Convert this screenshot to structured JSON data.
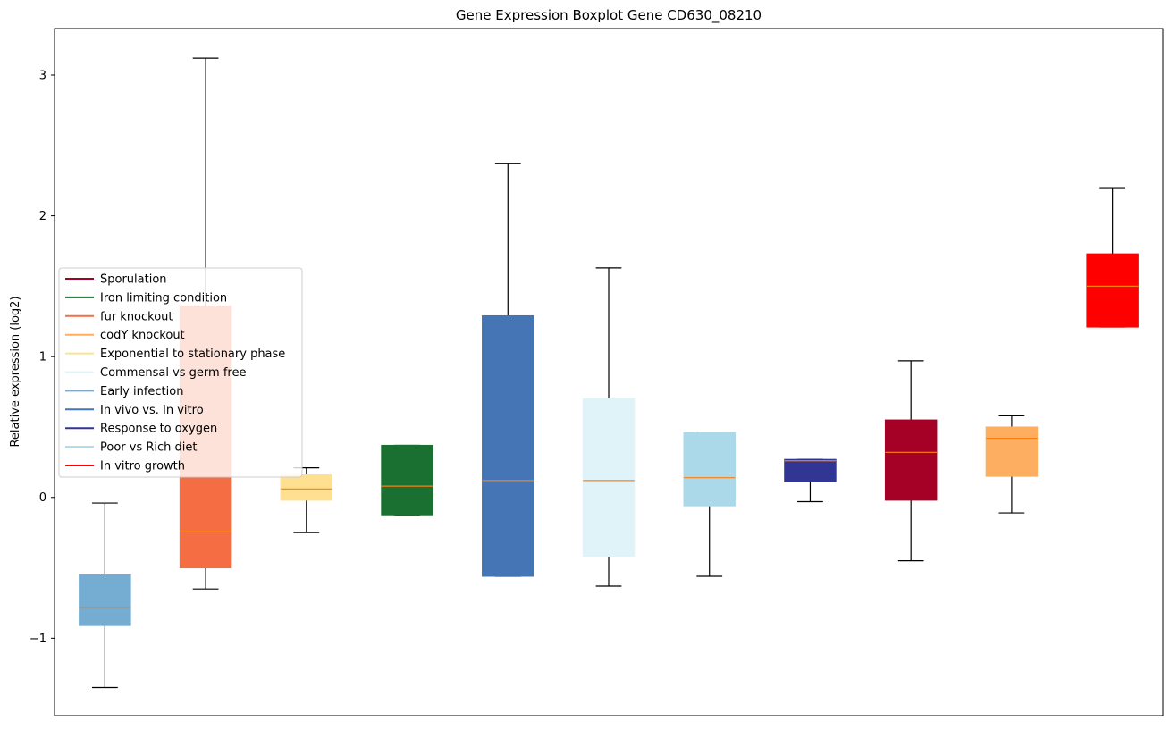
{
  "chart_data": {
    "type": "boxplot",
    "title": "Gene Expression Boxplot Gene CD630_08210",
    "xlabel": "",
    "ylabel": "Relative expression (log2)",
    "ylim": [
      -1.55,
      3.33
    ],
    "yticks": [
      -1,
      0,
      1,
      2,
      3
    ],
    "ytick_labels": [
      "−1",
      "0",
      "1",
      "2",
      "3"
    ],
    "median_color": "#ff7f0e",
    "legend_position": "center-left",
    "legend": [
      {
        "label": "Sporulation",
        "color": "#a50026"
      },
      {
        "label": "Iron limiting condition",
        "color": "#1a7030"
      },
      {
        "label": "fur knockout",
        "color": "#f46d43"
      },
      {
        "label": "codY knockout",
        "color": "#fdae61"
      },
      {
        "label": "Exponential to stationary phase",
        "color": "#fee090"
      },
      {
        "label": "Commensal vs germ free",
        "color": "#e0f3f8"
      },
      {
        "label": "Early infection",
        "color": "#74add1"
      },
      {
        "label": "In vivo vs. In vitro",
        "color": "#4575b4"
      },
      {
        "label": "Response to oxygen",
        "color": "#313695"
      },
      {
        "label": "Poor vs Rich diet",
        "color": "#abd9e9"
      },
      {
        "label": "In vitro growth",
        "color": "#ff0000"
      }
    ],
    "boxes": [
      {
        "color": "#74add1",
        "whislo": -1.35,
        "q1": -0.91,
        "med": -0.78,
        "q3": -0.55,
        "whishi": -0.04
      },
      {
        "color": "#f46d43",
        "whislo": -0.65,
        "q1": -0.5,
        "med": -0.24,
        "q3": 1.36,
        "whishi": 3.12
      },
      {
        "color": "#fee090",
        "whislo": -0.25,
        "q1": -0.02,
        "med": 0.06,
        "q3": 0.16,
        "whishi": 0.21
      },
      {
        "color": "#1a7030",
        "whislo": -0.13,
        "q1": -0.13,
        "med": 0.08,
        "q3": 0.37,
        "whishi": 0.37
      },
      {
        "color": "#4575b4",
        "whislo": -0.56,
        "q1": -0.56,
        "med": 0.12,
        "q3": 1.29,
        "whishi": 2.37
      },
      {
        "color": "#e0f3f8",
        "whislo": -0.63,
        "q1": -0.42,
        "med": 0.12,
        "q3": 0.7,
        "whishi": 1.63
      },
      {
        "color": "#abd9e9",
        "whislo": -0.56,
        "q1": -0.06,
        "med": 0.14,
        "q3": 0.46,
        "whishi": 0.46
      },
      {
        "color": "#313695",
        "whislo": -0.03,
        "q1": 0.11,
        "med": 0.26,
        "q3": 0.27,
        "whishi": 0.27
      },
      {
        "color": "#a50026",
        "whislo": -0.45,
        "q1": -0.02,
        "med": 0.32,
        "q3": 0.55,
        "whishi": 0.97
      },
      {
        "color": "#fdae61",
        "whislo": -0.11,
        "q1": 0.15,
        "med": 0.42,
        "q3": 0.5,
        "whishi": 0.58
      },
      {
        "color": "#ff0000",
        "whislo": 1.21,
        "q1": 1.21,
        "med": 1.5,
        "q3": 1.73,
        "whishi": 2.2
      }
    ]
  }
}
